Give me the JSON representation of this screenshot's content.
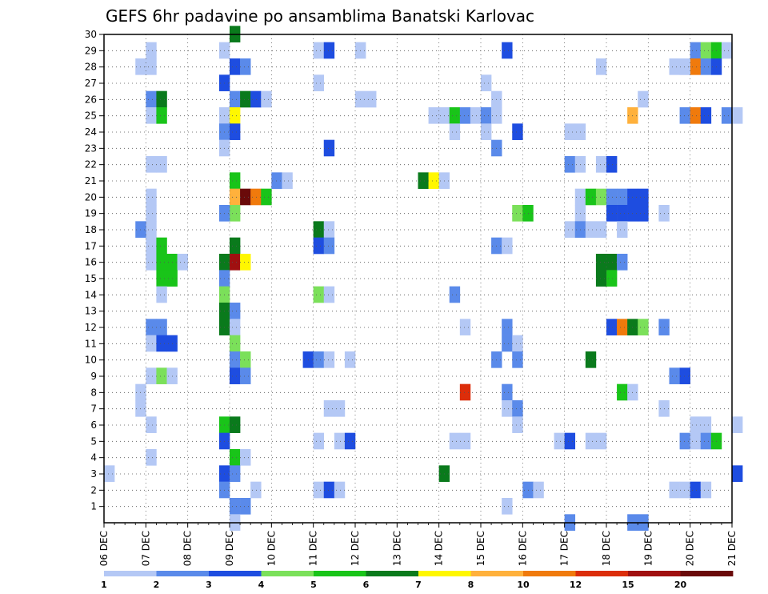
{
  "chart_data": {
    "type": "heatmap",
    "title": "GEFS 6hr padavine po ansamblima Banatski Karlovac",
    "xlabel": "",
    "ylabel": "",
    "x_ticks": [
      "06 DEC",
      "07 DEC",
      "08 DEC",
      "09 DEC",
      "10 DEC",
      "11 DEC",
      "12 DEC",
      "13 DEC",
      "14 DEC",
      "15 DEC",
      "16 DEC",
      "17 DEC",
      "18 DEC",
      "19 DEC",
      "20 DEC",
      "21 DEC"
    ],
    "y_ticks": [
      "1",
      "2",
      "3",
      "4",
      "5",
      "6",
      "7",
      "8",
      "9",
      "10",
      "11",
      "12",
      "13",
      "14",
      "15",
      "16",
      "17",
      "18",
      "19",
      "20",
      "21",
      "22",
      "23",
      "24",
      "25",
      "26",
      "27",
      "28",
      "29",
      "30"
    ],
    "xlim": [
      0,
      60
    ],
    "ylim": [
      0,
      30
    ],
    "x_unit": "6-hour step from 06 DEC 00z",
    "y_unit": "ensemble member",
    "grid": "dotted",
    "legend": {
      "position": "bottom",
      "levels": [
        "1",
        "2",
        "3",
        "4",
        "5",
        "6",
        "7",
        "8",
        "10",
        "12",
        "15",
        "20"
      ],
      "colors": [
        "#b4c8f5",
        "#5a8aea",
        "#1e4de0",
        "#7be05a",
        "#19c419",
        "#0a7a1c",
        "#fff700",
        "#ffb13c",
        "#f07a0c",
        "#dc2d0a",
        "#a01010",
        "#6a0a0a"
      ]
    },
    "cells": [
      [
        4,
        29,
        0
      ],
      [
        3,
        28,
        0
      ],
      [
        4,
        28,
        0
      ],
      [
        4,
        26,
        1
      ],
      [
        5,
        26,
        5
      ],
      [
        4,
        25,
        0
      ],
      [
        5,
        25,
        4
      ],
      [
        5,
        22,
        0
      ],
      [
        4,
        22,
        0
      ],
      [
        4,
        20,
        0
      ],
      [
        4,
        19,
        0
      ],
      [
        4,
        18,
        0
      ],
      [
        3,
        18,
        1
      ],
      [
        4,
        17,
        0
      ],
      [
        5,
        17,
        4
      ],
      [
        4,
        16,
        0
      ],
      [
        5,
        16,
        4
      ],
      [
        6,
        16,
        4
      ],
      [
        7,
        16,
        0
      ],
      [
        5,
        15,
        4
      ],
      [
        6,
        15,
        4
      ],
      [
        5,
        14,
        0
      ],
      [
        4,
        12,
        1
      ],
      [
        5,
        12,
        1
      ],
      [
        4,
        11,
        0
      ],
      [
        5,
        11,
        2
      ],
      [
        6,
        11,
        2
      ],
      [
        4,
        9,
        0
      ],
      [
        5,
        9,
        3
      ],
      [
        6,
        9,
        0
      ],
      [
        3,
        8,
        0
      ],
      [
        3,
        7,
        0
      ],
      [
        4,
        6,
        0
      ],
      [
        4,
        4,
        0
      ],
      [
        0,
        3,
        0
      ],
      [
        12,
        30,
        5
      ],
      [
        11,
        29,
        0
      ],
      [
        12,
        28,
        2
      ],
      [
        13,
        28,
        1
      ],
      [
        11,
        27,
        2
      ],
      [
        12,
        26,
        1
      ],
      [
        13,
        26,
        5
      ],
      [
        14,
        26,
        2
      ],
      [
        15,
        26,
        0
      ],
      [
        11,
        25,
        0
      ],
      [
        12,
        25,
        6
      ],
      [
        11,
        24,
        1
      ],
      [
        12,
        24,
        2
      ],
      [
        11,
        23,
        0
      ],
      [
        12,
        21,
        4
      ],
      [
        12,
        20,
        7
      ],
      [
        13,
        20,
        11
      ],
      [
        14,
        20,
        8
      ],
      [
        15,
        20,
        4
      ],
      [
        12,
        19,
        3
      ],
      [
        11,
        19,
        1
      ],
      [
        12,
        17,
        5
      ],
      [
        11,
        16,
        5
      ],
      [
        12,
        16,
        10
      ],
      [
        13,
        16,
        6
      ],
      [
        11,
        15,
        1
      ],
      [
        11,
        14,
        3
      ],
      [
        11,
        13,
        5
      ],
      [
        12,
        13,
        1
      ],
      [
        11,
        12,
        5
      ],
      [
        12,
        12,
        0
      ],
      [
        12,
        11,
        3
      ],
      [
        12,
        10,
        1
      ],
      [
        13,
        10,
        3
      ],
      [
        12,
        9,
        2
      ],
      [
        13,
        9,
        1
      ],
      [
        11,
        6,
        4
      ],
      [
        12,
        6,
        5
      ],
      [
        11,
        5,
        2
      ],
      [
        12,
        4,
        4
      ],
      [
        13,
        4,
        0
      ],
      [
        11,
        3,
        2
      ],
      [
        12,
        3,
        1
      ],
      [
        11,
        2,
        1
      ],
      [
        14,
        2,
        0
      ],
      [
        12,
        1,
        1
      ],
      [
        13,
        1,
        1
      ],
      [
        12,
        0,
        0
      ],
      [
        16,
        21,
        1
      ],
      [
        17,
        21,
        0
      ],
      [
        20,
        29,
        0
      ],
      [
        21,
        29,
        2
      ],
      [
        20,
        27,
        0
      ],
      [
        21,
        23,
        2
      ],
      [
        20,
        18,
        5
      ],
      [
        21,
        18,
        0
      ],
      [
        20,
        17,
        2
      ],
      [
        21,
        17,
        1
      ],
      [
        20,
        14,
        3
      ],
      [
        21,
        14,
        0
      ],
      [
        19,
        10,
        2
      ],
      [
        20,
        10,
        1
      ],
      [
        21,
        10,
        0
      ],
      [
        23,
        10,
        0
      ],
      [
        21,
        7,
        0
      ],
      [
        22,
        7,
        0
      ],
      [
        20,
        5,
        0
      ],
      [
        22,
        5,
        0
      ],
      [
        23,
        5,
        2
      ],
      [
        20,
        2,
        0
      ],
      [
        21,
        2,
        2
      ],
      [
        22,
        2,
        0
      ],
      [
        24,
        29,
        0
      ],
      [
        24,
        26,
        0
      ],
      [
        25,
        26,
        0
      ],
      [
        31,
        25,
        0
      ],
      [
        32,
        25,
        0
      ],
      [
        33,
        25,
        4
      ],
      [
        34,
        25,
        1
      ],
      [
        35,
        25,
        0
      ],
      [
        36,
        25,
        1
      ],
      [
        37,
        25,
        0
      ],
      [
        33,
        24,
        0
      ],
      [
        36,
        24,
        0
      ],
      [
        37,
        26,
        0
      ],
      [
        36,
        27,
        0
      ],
      [
        38,
        29,
        2
      ],
      [
        37,
        23,
        1
      ],
      [
        39,
        24,
        2
      ],
      [
        30,
        21,
        5
      ],
      [
        31,
        21,
        6
      ],
      [
        32,
        21,
        0
      ],
      [
        37,
        10,
        1
      ],
      [
        33,
        14,
        1
      ],
      [
        34,
        12,
        0
      ],
      [
        38,
        12,
        1
      ],
      [
        39,
        19,
        3
      ],
      [
        40,
        19,
        4
      ],
      [
        38,
        11,
        1
      ],
      [
        39,
        11,
        0
      ],
      [
        39,
        10,
        1
      ],
      [
        34,
        8,
        9
      ],
      [
        38,
        8,
        1
      ],
      [
        38,
        7,
        0
      ],
      [
        39,
        7,
        1
      ],
      [
        39,
        6,
        0
      ],
      [
        33,
        5,
        0
      ],
      [
        34,
        5,
        0
      ],
      [
        32,
        3,
        5
      ],
      [
        38,
        1,
        0
      ],
      [
        37,
        17,
        1
      ],
      [
        38,
        17,
        0
      ],
      [
        40,
        2,
        1
      ],
      [
        41,
        2,
        0
      ],
      [
        44,
        24,
        0
      ],
      [
        45,
        24,
        0
      ],
      [
        44,
        22,
        1
      ],
      [
        45,
        22,
        0
      ],
      [
        47,
        22,
        0
      ],
      [
        48,
        22,
        2
      ],
      [
        45,
        20,
        0
      ],
      [
        46,
        20,
        4
      ],
      [
        47,
        20,
        3
      ],
      [
        48,
        20,
        1
      ],
      [
        49,
        20,
        1
      ],
      [
        50,
        20,
        2
      ],
      [
        51,
        20,
        2
      ],
      [
        45,
        19,
        0
      ],
      [
        48,
        19,
        2
      ],
      [
        49,
        19,
        2
      ],
      [
        50,
        19,
        2
      ],
      [
        51,
        19,
        2
      ],
      [
        44,
        18,
        0
      ],
      [
        45,
        18,
        1
      ],
      [
        46,
        18,
        0
      ],
      [
        47,
        18,
        0
      ],
      [
        49,
        18,
        0
      ],
      [
        47,
        16,
        5
      ],
      [
        48,
        16,
        5
      ],
      [
        49,
        16,
        1
      ],
      [
        47,
        15,
        5
      ],
      [
        48,
        15,
        4
      ],
      [
        48,
        12,
        2
      ],
      [
        49,
        12,
        8
      ],
      [
        50,
        12,
        5
      ],
      [
        51,
        12,
        3
      ],
      [
        53,
        12,
        1
      ],
      [
        46,
        10,
        5
      ],
      [
        49,
        8,
        4
      ],
      [
        50,
        8,
        0
      ],
      [
        43,
        5,
        0
      ],
      [
        44,
        5,
        2
      ],
      [
        46,
        5,
        0
      ],
      [
        47,
        5,
        0
      ],
      [
        44,
        0,
        1
      ],
      [
        50,
        0,
        1
      ],
      [
        51,
        0,
        1
      ],
      [
        47,
        28,
        0
      ],
      [
        50,
        25,
        7
      ],
      [
        51,
        26,
        0
      ],
      [
        53,
        19,
        0
      ],
      [
        56,
        29,
        1
      ],
      [
        57,
        29,
        3
      ],
      [
        58,
        29,
        4
      ],
      [
        59,
        29,
        0
      ],
      [
        55,
        28,
        0
      ],
      [
        56,
        28,
        8
      ],
      [
        57,
        28,
        1
      ],
      [
        58,
        28,
        2
      ],
      [
        55,
        25,
        1
      ],
      [
        56,
        25,
        8
      ],
      [
        57,
        25,
        2
      ],
      [
        59,
        25,
        1
      ],
      [
        60,
        25,
        0
      ],
      [
        54,
        9,
        1
      ],
      [
        55,
        9,
        2
      ],
      [
        53,
        7,
        0
      ],
      [
        56,
        6,
        0
      ],
      [
        57,
        6,
        0
      ],
      [
        60,
        6,
        0
      ],
      [
        55,
        5,
        1
      ],
      [
        56,
        5,
        0
      ],
      [
        57,
        5,
        1
      ],
      [
        58,
        5,
        4
      ],
      [
        60,
        3,
        2
      ],
      [
        54,
        2,
        0
      ],
      [
        55,
        2,
        0
      ],
      [
        56,
        2,
        2
      ],
      [
        57,
        2,
        0
      ],
      [
        55,
        28,
        0
      ],
      [
        54,
        28,
        0
      ]
    ]
  }
}
